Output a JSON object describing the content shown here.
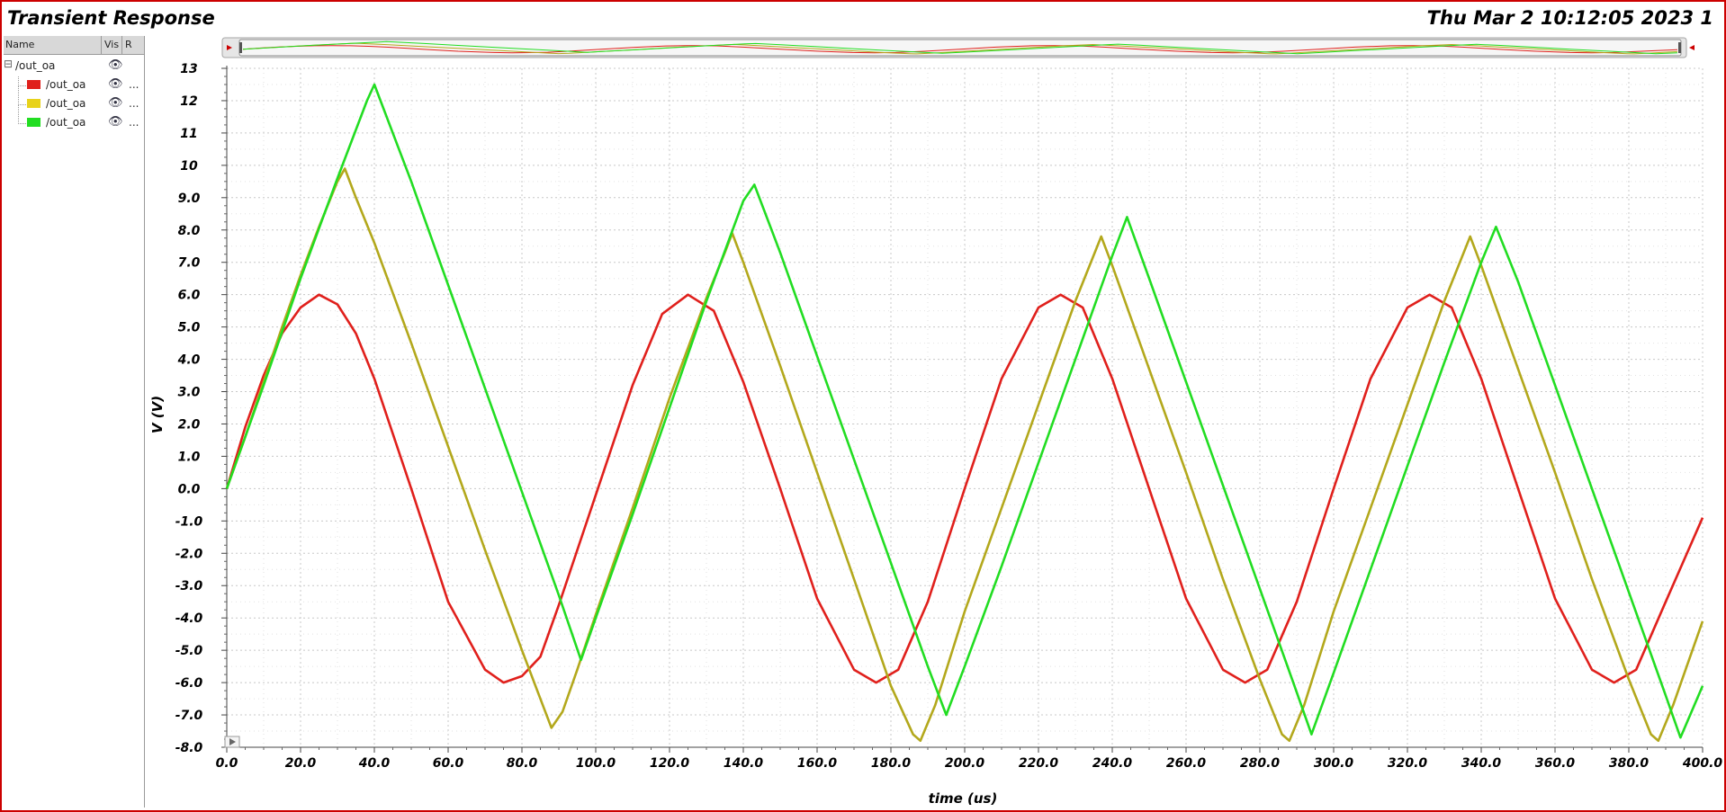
{
  "window": {
    "title": "Transient Response",
    "datestamp": "Thu Mar 2 10:12:05 2023  1"
  },
  "legend": {
    "col_name": "Name",
    "col_vis": "Vis",
    "col_r": "R",
    "group_label": "/out_oa",
    "group_toggle": "⊟",
    "eye_glyph": "👁",
    "more_glyph": "...",
    "items": [
      {
        "label": "/out_oa",
        "color": "#e0201c"
      },
      {
        "label": "/out_oa",
        "color": "#e8d21a"
      },
      {
        "label": "/out_oa",
        "color": "#22dd22"
      }
    ]
  },
  "chart_data": {
    "type": "line",
    "title": "",
    "xlabel": "time (us)",
    "ylabel": "V (V)",
    "xlim": [
      0,
      400
    ],
    "ylim": [
      -8,
      13
    ],
    "x_ticks": [
      "0.0",
      "20.0",
      "40.0",
      "60.0",
      "80.0",
      "100.0",
      "120.0",
      "140.0",
      "160.0",
      "180.0",
      "200.0",
      "220.0",
      "240.0",
      "260.0",
      "280.0",
      "300.0",
      "320.0",
      "340.0",
      "360.0",
      "380.0",
      "400.0"
    ],
    "y_ticks": [
      "13",
      "12",
      "11",
      "10",
      "9.0",
      "8.0",
      "7.0",
      "6.0",
      "5.0",
      "4.0",
      "3.0",
      "2.0",
      "1.0",
      "0.0",
      "-1.0",
      "-2.0",
      "-3.0",
      "-4.0",
      "-5.0",
      "-6.0",
      "-7.0",
      "-8.0"
    ],
    "grid": true,
    "series": [
      {
        "color": "#e0201c",
        "points": [
          [
            0,
            0
          ],
          [
            5,
            1.9
          ],
          [
            10,
            3.5
          ],
          [
            15,
            4.8
          ],
          [
            20,
            5.6
          ],
          [
            25,
            6.0
          ],
          [
            30,
            5.7
          ],
          [
            35,
            4.8
          ],
          [
            40,
            3.4
          ],
          [
            45,
            1.7
          ],
          [
            50,
            0
          ],
          [
            60,
            -3.5
          ],
          [
            70,
            -5.6
          ],
          [
            75,
            -6.0
          ],
          [
            80,
            -5.8
          ],
          [
            85,
            -5.2
          ],
          [
            90,
            -3.6
          ],
          [
            100,
            -0.2
          ],
          [
            110,
            3.2
          ],
          [
            118,
            5.4
          ],
          [
            125,
            6.0
          ],
          [
            132,
            5.5
          ],
          [
            140,
            3.3
          ],
          [
            150,
            0
          ],
          [
            160,
            -3.4
          ],
          [
            170,
            -5.6
          ],
          [
            176,
            -6.0
          ],
          [
            182,
            -5.6
          ],
          [
            190,
            -3.5
          ],
          [
            200,
            0
          ],
          [
            210,
            3.4
          ],
          [
            220,
            5.6
          ],
          [
            226,
            6.0
          ],
          [
            232,
            5.6
          ],
          [
            240,
            3.4
          ],
          [
            250,
            0
          ],
          [
            260,
            -3.4
          ],
          [
            270,
            -5.6
          ],
          [
            276,
            -6.0
          ],
          [
            282,
            -5.6
          ],
          [
            290,
            -3.5
          ],
          [
            300,
            0
          ],
          [
            310,
            3.4
          ],
          [
            320,
            5.6
          ],
          [
            326,
            6.0
          ],
          [
            332,
            5.6
          ],
          [
            340,
            3.4
          ],
          [
            350,
            0
          ],
          [
            360,
            -3.4
          ],
          [
            370,
            -5.6
          ],
          [
            376,
            -6.0
          ],
          [
            382,
            -5.6
          ],
          [
            390,
            -3.5
          ],
          [
            400,
            -0.9
          ]
        ]
      },
      {
        "color": "#b3a81c",
        "points": [
          [
            0,
            0
          ],
          [
            5,
            1.6
          ],
          [
            10,
            3.3
          ],
          [
            15,
            5.0
          ],
          [
            20,
            6.6
          ],
          [
            25,
            8.1
          ],
          [
            30,
            9.5
          ],
          [
            32,
            9.9
          ],
          [
            35,
            9.0
          ],
          [
            40,
            7.6
          ],
          [
            50,
            4.5
          ],
          [
            60,
            1.3
          ],
          [
            70,
            -1.9
          ],
          [
            80,
            -5.0
          ],
          [
            86,
            -6.8
          ],
          [
            88,
            -7.4
          ],
          [
            91,
            -6.9
          ],
          [
            95,
            -5.6
          ],
          [
            100,
            -3.9
          ],
          [
            110,
            -0.6
          ],
          [
            120,
            2.8
          ],
          [
            130,
            5.9
          ],
          [
            135,
            7.3
          ],
          [
            137,
            7.9
          ],
          [
            140,
            7.0
          ],
          [
            150,
            3.8
          ],
          [
            160,
            0.5
          ],
          [
            170,
            -2.8
          ],
          [
            180,
            -6.1
          ],
          [
            186,
            -7.6
          ],
          [
            188,
            -7.8
          ],
          [
            192,
            -6.7
          ],
          [
            200,
            -3.8
          ],
          [
            210,
            -0.6
          ],
          [
            220,
            2.6
          ],
          [
            230,
            5.8
          ],
          [
            237,
            7.8
          ],
          [
            240,
            6.9
          ],
          [
            250,
            3.7
          ],
          [
            260,
            0.5
          ],
          [
            270,
            -2.8
          ],
          [
            280,
            -5.9
          ],
          [
            286,
            -7.6
          ],
          [
            288,
            -7.8
          ],
          [
            292,
            -6.7
          ],
          [
            300,
            -3.8
          ],
          [
            310,
            -0.6
          ],
          [
            320,
            2.6
          ],
          [
            330,
            5.8
          ],
          [
            337,
            7.8
          ],
          [
            340,
            6.9
          ],
          [
            350,
            3.7
          ],
          [
            360,
            0.5
          ],
          [
            370,
            -2.8
          ],
          [
            380,
            -5.9
          ],
          [
            386,
            -7.6
          ],
          [
            388,
            -7.8
          ],
          [
            392,
            -6.7
          ],
          [
            400,
            -4.1
          ]
        ]
      },
      {
        "color": "#22dd22",
        "points": [
          [
            0,
            0
          ],
          [
            10,
            3.2
          ],
          [
            20,
            6.5
          ],
          [
            30,
            9.6
          ],
          [
            38,
            12.0
          ],
          [
            40,
            12.5
          ],
          [
            45,
            11.0
          ],
          [
            50,
            9.5
          ],
          [
            60,
            6.3
          ],
          [
            70,
            3.1
          ],
          [
            80,
            -0.1
          ],
          [
            90,
            -3.3
          ],
          [
            96,
            -5.3
          ],
          [
            100,
            -4.0
          ],
          [
            110,
            -0.8
          ],
          [
            120,
            2.5
          ],
          [
            130,
            5.8
          ],
          [
            140,
            8.9
          ],
          [
            143,
            9.4
          ],
          [
            150,
            7.3
          ],
          [
            160,
            4.1
          ],
          [
            170,
            0.9
          ],
          [
            180,
            -2.3
          ],
          [
            190,
            -5.5
          ],
          [
            195,
            -7.0
          ],
          [
            200,
            -5.5
          ],
          [
            210,
            -2.4
          ],
          [
            220,
            0.8
          ],
          [
            230,
            4.0
          ],
          [
            240,
            7.2
          ],
          [
            244,
            8.4
          ],
          [
            250,
            6.5
          ],
          [
            260,
            3.3
          ],
          [
            270,
            0.1
          ],
          [
            280,
            -3.1
          ],
          [
            290,
            -6.3
          ],
          [
            294,
            -7.6
          ],
          [
            300,
            -5.7
          ],
          [
            310,
            -2.5
          ],
          [
            320,
            0.7
          ],
          [
            330,
            3.9
          ],
          [
            340,
            7.0
          ],
          [
            344,
            8.1
          ],
          [
            350,
            6.4
          ],
          [
            360,
            3.2
          ],
          [
            370,
            0
          ],
          [
            380,
            -3.2
          ],
          [
            390,
            -6.4
          ],
          [
            394,
            -7.7
          ],
          [
            400,
            -6.1
          ]
        ]
      }
    ]
  }
}
